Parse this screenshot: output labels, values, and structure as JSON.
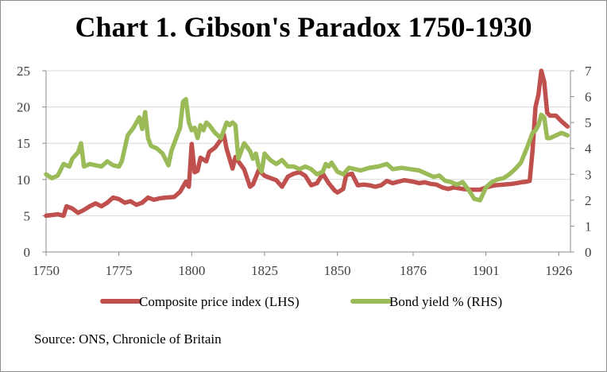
{
  "source_text": "Source: ONS, Chronicle of Britain",
  "colors": {
    "price": "#c0504d",
    "yield": "#9bbb59",
    "axis": "#8c8c8c",
    "text": "#404040"
  },
  "chart_data": {
    "type": "line",
    "title": "Chart 1. Gibson's Paradox 1750-1930",
    "x_ticks": [
      1750,
      1775,
      1800,
      1825,
      1850,
      1876,
      1901,
      1926
    ],
    "x_tick_labels": [
      "1750",
      "1775",
      "1800",
      "1825",
      "1850",
      "1876",
      "1901",
      "1926"
    ],
    "xlim": [
      1750,
      1930
    ],
    "ylim_left": [
      0,
      25
    ],
    "y_ticks_left": [
      "0",
      "5",
      "10",
      "15",
      "20",
      "25"
    ],
    "ylim_right": [
      0,
      7
    ],
    "y_ticks_right": [
      "0",
      "1",
      "2",
      "3",
      "4",
      "5",
      "6",
      "7"
    ],
    "grid": "horizontal",
    "legend_position": "bottom",
    "series": [
      {
        "name": "Composite price index (LHS)",
        "axis": "left",
        "color": "#c0504d",
        "points": [
          [
            1750,
            5.0
          ],
          [
            1752,
            5.1
          ],
          [
            1754,
            5.2
          ],
          [
            1756,
            5.0
          ],
          [
            1757,
            6.3
          ],
          [
            1759,
            6.0
          ],
          [
            1761,
            5.4
          ],
          [
            1763,
            5.8
          ],
          [
            1765,
            6.3
          ],
          [
            1767,
            6.7
          ],
          [
            1769,
            6.3
          ],
          [
            1771,
            6.8
          ],
          [
            1773,
            7.5
          ],
          [
            1775,
            7.3
          ],
          [
            1777,
            6.8
          ],
          [
            1779,
            7.0
          ],
          [
            1781,
            6.5
          ],
          [
            1783,
            6.8
          ],
          [
            1785,
            7.5
          ],
          [
            1787,
            7.2
          ],
          [
            1789,
            7.4
          ],
          [
            1791,
            7.5
          ],
          [
            1794,
            7.6
          ],
          [
            1796,
            8.3
          ],
          [
            1798,
            9.7
          ],
          [
            1799,
            9.0
          ],
          [
            1800,
            14.9
          ],
          [
            1801,
            11.0
          ],
          [
            1802,
            11.2
          ],
          [
            1803,
            13.0
          ],
          [
            1805,
            12.5
          ],
          [
            1806,
            13.8
          ],
          [
            1808,
            14.4
          ],
          [
            1810,
            15.5
          ],
          [
            1811,
            16.2
          ],
          [
            1812,
            14.2
          ],
          [
            1814,
            11.5
          ],
          [
            1815,
            13.1
          ],
          [
            1816,
            12.5
          ],
          [
            1818,
            11.4
          ],
          [
            1820,
            9.0
          ],
          [
            1821,
            9.3
          ],
          [
            1823,
            11.3
          ],
          [
            1825,
            10.5
          ],
          [
            1827,
            10.2
          ],
          [
            1829,
            9.9
          ],
          [
            1831,
            9.0
          ],
          [
            1833,
            10.4
          ],
          [
            1835,
            10.8
          ],
          [
            1837,
            11.0
          ],
          [
            1839,
            10.5
          ],
          [
            1841,
            9.2
          ],
          [
            1843,
            9.5
          ],
          [
            1845,
            10.8
          ],
          [
            1847,
            9.5
          ],
          [
            1849,
            8.5
          ],
          [
            1850,
            8.2
          ],
          [
            1852,
            8.7
          ],
          [
            1853,
            10.6
          ],
          [
            1855,
            10.8
          ],
          [
            1857,
            9.2
          ],
          [
            1859,
            9.3
          ],
          [
            1861,
            9.2
          ],
          [
            1863,
            9.0
          ],
          [
            1865,
            9.2
          ],
          [
            1867,
            9.8
          ],
          [
            1869,
            9.5
          ],
          [
            1871,
            9.7
          ],
          [
            1873,
            9.9
          ],
          [
            1876,
            9.7
          ],
          [
            1878,
            9.5
          ],
          [
            1880,
            9.6
          ],
          [
            1882,
            9.4
          ],
          [
            1884,
            9.3
          ],
          [
            1886,
            8.9
          ],
          [
            1888,
            8.7
          ],
          [
            1890,
            8.9
          ],
          [
            1893,
            8.7
          ],
          [
            1896,
            8.6
          ],
          [
            1899,
            8.6
          ],
          [
            1901,
            8.9
          ],
          [
            1904,
            9.2
          ],
          [
            1907,
            9.3
          ],
          [
            1910,
            9.4
          ],
          [
            1913,
            9.6
          ],
          [
            1915,
            9.7
          ],
          [
            1916,
            9.8
          ],
          [
            1917,
            14.0
          ],
          [
            1918,
            20.0
          ],
          [
            1919,
            21.7
          ],
          [
            1920,
            25.0
          ],
          [
            1921,
            23.5
          ],
          [
            1922,
            19.2
          ],
          [
            1923,
            18.8
          ],
          [
            1925,
            18.8
          ],
          [
            1927,
            18.0
          ],
          [
            1929,
            17.3
          ]
        ]
      },
      {
        "name": "Bond yield % (RHS)",
        "axis": "right",
        "color": "#9bbb59",
        "points": [
          [
            1750,
            3.0
          ],
          [
            1752,
            2.85
          ],
          [
            1754,
            2.95
          ],
          [
            1756,
            3.4
          ],
          [
            1758,
            3.3
          ],
          [
            1759,
            3.6
          ],
          [
            1761,
            3.85
          ],
          [
            1762,
            4.2
          ],
          [
            1763,
            3.3
          ],
          [
            1765,
            3.4
          ],
          [
            1767,
            3.35
          ],
          [
            1769,
            3.3
          ],
          [
            1771,
            3.5
          ],
          [
            1773,
            3.35
          ],
          [
            1775,
            3.3
          ],
          [
            1776,
            3.5
          ],
          [
            1778,
            4.5
          ],
          [
            1780,
            4.8
          ],
          [
            1781,
            5.0
          ],
          [
            1782,
            5.2
          ],
          [
            1783,
            4.75
          ],
          [
            1784,
            5.4
          ],
          [
            1785,
            4.4
          ],
          [
            1786,
            4.1
          ],
          [
            1788,
            4.0
          ],
          [
            1790,
            3.8
          ],
          [
            1792,
            3.35
          ],
          [
            1793,
            3.9
          ],
          [
            1795,
            4.5
          ],
          [
            1796,
            4.8
          ],
          [
            1797,
            5.8
          ],
          [
            1798,
            5.9
          ],
          [
            1799,
            5.0
          ],
          [
            1800,
            4.7
          ],
          [
            1801,
            4.8
          ],
          [
            1802,
            4.4
          ],
          [
            1803,
            4.9
          ],
          [
            1804,
            4.7
          ],
          [
            1805,
            5.0
          ],
          [
            1806,
            4.9
          ],
          [
            1808,
            4.6
          ],
          [
            1810,
            4.4
          ],
          [
            1811,
            4.7
          ],
          [
            1812,
            5.0
          ],
          [
            1813,
            4.9
          ],
          [
            1814,
            5.0
          ],
          [
            1815,
            4.9
          ],
          [
            1816,
            3.6
          ],
          [
            1817,
            3.9
          ],
          [
            1818,
            4.2
          ],
          [
            1820,
            3.9
          ],
          [
            1821,
            3.6
          ],
          [
            1822,
            3.8
          ],
          [
            1823,
            3.3
          ],
          [
            1824,
            3.1
          ],
          [
            1825,
            3.8
          ],
          [
            1827,
            3.55
          ],
          [
            1829,
            3.4
          ],
          [
            1831,
            3.55
          ],
          [
            1833,
            3.3
          ],
          [
            1835,
            3.3
          ],
          [
            1837,
            3.2
          ],
          [
            1839,
            3.3
          ],
          [
            1841,
            3.2
          ],
          [
            1843,
            3.0
          ],
          [
            1845,
            3.1
          ],
          [
            1846,
            3.4
          ],
          [
            1847,
            3.3
          ],
          [
            1848,
            3.45
          ],
          [
            1850,
            3.1
          ],
          [
            1852,
            3.0
          ],
          [
            1854,
            3.25
          ],
          [
            1856,
            3.2
          ],
          [
            1858,
            3.15
          ],
          [
            1861,
            3.25
          ],
          [
            1864,
            3.3
          ],
          [
            1867,
            3.4
          ],
          [
            1869,
            3.2
          ],
          [
            1872,
            3.25
          ],
          [
            1875,
            3.2
          ],
          [
            1878,
            3.15
          ],
          [
            1881,
            3.0
          ],
          [
            1883,
            2.9
          ],
          [
            1885,
            2.95
          ],
          [
            1887,
            2.75
          ],
          [
            1889,
            2.7
          ],
          [
            1891,
            2.6
          ],
          [
            1893,
            2.7
          ],
          [
            1895,
            2.4
          ],
          [
            1897,
            2.05
          ],
          [
            1899,
            2.0
          ],
          [
            1901,
            2.5
          ],
          [
            1903,
            2.7
          ],
          [
            1905,
            2.8
          ],
          [
            1907,
            2.85
          ],
          [
            1909,
            3.0
          ],
          [
            1911,
            3.2
          ],
          [
            1913,
            3.45
          ],
          [
            1915,
            4.0
          ],
          [
            1916,
            4.3
          ],
          [
            1917,
            4.6
          ],
          [
            1918,
            4.7
          ],
          [
            1919,
            4.9
          ],
          [
            1920,
            5.3
          ],
          [
            1921,
            5.2
          ],
          [
            1922,
            4.4
          ],
          [
            1923,
            4.4
          ],
          [
            1925,
            4.5
          ],
          [
            1927,
            4.6
          ],
          [
            1929,
            4.5
          ]
        ]
      }
    ]
  }
}
